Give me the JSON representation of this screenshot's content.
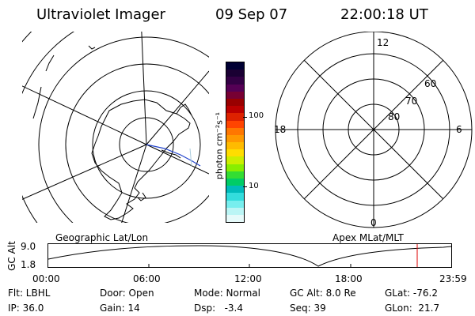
{
  "header": {
    "title": "Ultraviolet Imager",
    "date": "09 Sep 07",
    "time": "22:00:18 UT"
  },
  "left_map": {
    "caption": "Geographic Lat/Lon"
  },
  "colorbar": {
    "unit_label": "photon cm⁻²s⁻¹",
    "tick_100": "100",
    "tick_10": "10",
    "colors": [
      "#000033",
      "#1a0033",
      "#330044",
      "#550055",
      "#770033",
      "#990000",
      "#bb0000",
      "#dd2200",
      "#ff4400",
      "#ff7700",
      "#ff9900",
      "#ffbb00",
      "#ffdd00",
      "#ccee00",
      "#88ee00",
      "#33dd33",
      "#00cc66",
      "#00bbbb",
      "#33dddd",
      "#77eeee",
      "#bbf5f5",
      "#e6fafa"
    ]
  },
  "right_polar": {
    "caption": "Apex MLat/MLT",
    "mlt_top": "12",
    "mlt_left": "18",
    "mlt_right": "6",
    "mlt_bottom": "0",
    "lat_60": "60",
    "lat_70": "70",
    "lat_80": "80"
  },
  "altitude_plot": {
    "axis_label": "GC Alt",
    "y_top": "9.0",
    "y_bottom": "1.8",
    "x_ticks": [
      "00:00",
      "06:00",
      "12:00",
      "18:00",
      "23:59"
    ],
    "marker_color": "#dd0000"
  },
  "status": {
    "flt": "Flt: LBHL",
    "ip": "IP: 36.0",
    "door": "Door: Open",
    "gain": "Gain: 14",
    "mode": "Mode: Normal",
    "dsp": "Dsp:   -3.4",
    "gc_alt": "GC Alt: 8.0 Re",
    "seq": "Seq: 39",
    "glat": "GLat: -76.2",
    "glon": "GLon:  21.7"
  }
}
